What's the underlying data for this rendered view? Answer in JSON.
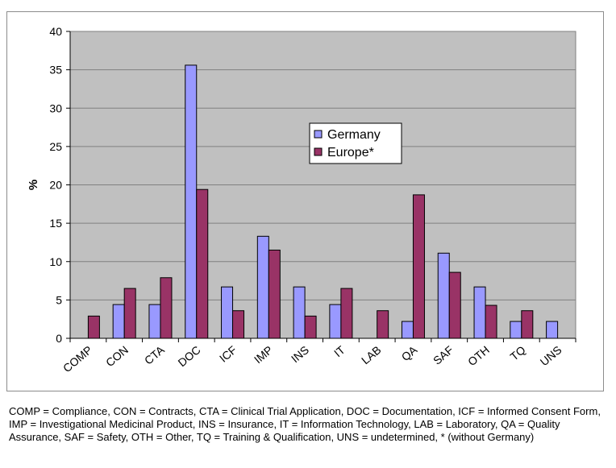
{
  "chart_data": {
    "type": "bar",
    "title": "",
    "xlabel": "",
    "ylabel": "%",
    "ylim": [
      0,
      40
    ],
    "yticks": [
      0,
      5,
      10,
      15,
      20,
      25,
      30,
      35,
      40
    ],
    "grid": true,
    "legend_position": "center-right",
    "categories": [
      "COMP",
      "CON",
      "CTA",
      "DOC",
      "ICF",
      "IMP",
      "INS",
      "IT",
      "LAB",
      "QA",
      "SAF",
      "OTH",
      "TQ",
      "UNS"
    ],
    "series": [
      {
        "name": "Germany",
        "color": "#9999ff",
        "values": [
          0,
          4.4,
          4.4,
          35.6,
          6.7,
          13.3,
          6.7,
          4.4,
          0,
          2.2,
          11.1,
          6.7,
          2.2,
          2.2
        ]
      },
      {
        "name": "Europe*",
        "color": "#993366",
        "values": [
          2.9,
          6.5,
          7.9,
          19.4,
          3.6,
          11.5,
          2.9,
          6.5,
          3.6,
          18.7,
          8.6,
          4.3,
          3.6,
          0
        ]
      }
    ],
    "plot_background": "#c0c0c0",
    "gridline_color": "#808080"
  },
  "caption": "COMP = Compliance, CON = Contracts, CTA = Clinical Trial Application, DOC = Documentation, ICF = Informed Consent Form, IMP = Investigational Medicinal Product, INS = Insurance, IT = Information Technology, LAB = Laboratory, QA = Quality Assurance, SAF = Safety, OTH = Other, TQ = Training & Qualification, UNS = undetermined, * (without Germany)"
}
